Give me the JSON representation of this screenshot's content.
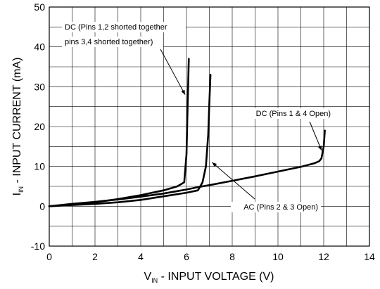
{
  "chart_data": {
    "type": "line",
    "xlabel_main": "V",
    "xlabel_sub": "IN",
    "xlabel_rest": " - INPUT VOLTAGE (V)",
    "ylabel_main": "I",
    "ylabel_sub": "IN",
    "ylabel_rest": " - INPUT CURRENT (mA)",
    "xlim": [
      0,
      14
    ],
    "ylim": [
      -10,
      50
    ],
    "xticks": [
      0,
      2,
      4,
      6,
      8,
      10,
      12,
      14
    ],
    "yticks": [
      -10,
      0,
      10,
      20,
      30,
      40,
      50
    ],
    "grid": true,
    "series": [
      {
        "name": "DC (Pins 1,2 shorted together pins 3,4 shorted together)",
        "name_line1": "DC (Pins 1,2 shorted together",
        "name_line2": "pins 3,4 shorted together)",
        "x": [
          0,
          1,
          2,
          3,
          4,
          5,
          5.6,
          5.9,
          6.0,
          6.05,
          6.1
        ],
        "y": [
          0,
          0.4,
          1.0,
          1.8,
          2.8,
          4.0,
          5.0,
          6.0,
          13,
          25,
          37
        ]
      },
      {
        "name": "AC (Pins 2 & 3 Open)",
        "x": [
          0,
          1,
          2,
          3,
          4,
          5,
          6,
          6.5,
          6.7,
          6.85,
          6.95,
          7.0,
          7.05
        ],
        "y": [
          0,
          0.3,
          0.6,
          1.0,
          1.6,
          2.5,
          3.4,
          4.0,
          6.0,
          10,
          18,
          26,
          33
        ]
      },
      {
        "name": "DC (Pins 1 & 4 Open)",
        "x": [
          0,
          1,
          2,
          3,
          4,
          5,
          6,
          6.5,
          7,
          8,
          9,
          10,
          11,
          11.6,
          11.8,
          11.9,
          12.0,
          12.05
        ],
        "y": [
          0,
          0.6,
          1.1,
          1.7,
          2.4,
          3.2,
          4.2,
          4.8,
          5.3,
          6.4,
          7.5,
          8.7,
          9.9,
          10.8,
          11.3,
          12.0,
          15.0,
          19.0
        ]
      }
    ]
  }
}
